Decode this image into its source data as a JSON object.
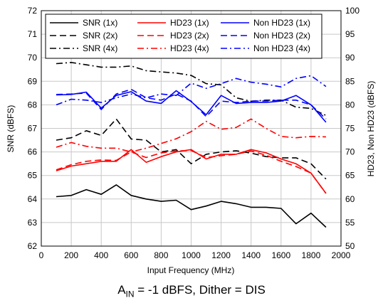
{
  "chart_data": {
    "type": "line",
    "title": "",
    "xlabel": "Input Frequency (MHz)",
    "ylabel_left": "SNR (dBFS)",
    "ylabel_right": "HD23, Non HD23 (dBFS)",
    "xlim": [
      0,
      2000
    ],
    "ylim_left": [
      62,
      72
    ],
    "ylim_right": [
      50,
      100
    ],
    "x_ticks": [
      0,
      200,
      400,
      600,
      800,
      1000,
      1200,
      1400,
      1600,
      1800,
      2000
    ],
    "y_left_ticks": [
      62,
      63,
      64,
      65,
      66,
      67,
      68,
      69,
      70,
      71,
      72
    ],
    "y_right_ticks": [
      50,
      55,
      60,
      65,
      70,
      75,
      80,
      85,
      90,
      95,
      100
    ],
    "grid": true,
    "legend_position": "top",
    "series": [
      {
        "name": "SNR (1x)",
        "axis": "left",
        "color": "#000000",
        "dash": "solid",
        "x": [
          100,
          200,
          300,
          400,
          500,
          600,
          700,
          800,
          900,
          1000,
          1100,
          1200,
          1300,
          1400,
          1500,
          1600,
          1700,
          1800,
          1900
        ],
        "y": [
          64.1,
          64.15,
          64.4,
          64.2,
          64.6,
          64.15,
          64.0,
          63.9,
          63.95,
          63.55,
          63.7,
          63.9,
          63.8,
          63.65,
          63.65,
          63.6,
          62.95,
          63.4,
          62.8
        ]
      },
      {
        "name": "SNR (2x)",
        "axis": "left",
        "color": "#000000",
        "dash": "dash",
        "x": [
          100,
          200,
          300,
          400,
          500,
          600,
          700,
          800,
          900,
          1000,
          1100,
          1200,
          1300,
          1400,
          1500,
          1600,
          1700,
          1800,
          1900
        ],
        "y": [
          66.5,
          66.6,
          66.9,
          66.7,
          67.4,
          66.55,
          66.5,
          66.0,
          66.1,
          65.5,
          65.9,
          66.0,
          66.05,
          65.95,
          65.8,
          65.75,
          65.75,
          65.5,
          64.85
        ]
      },
      {
        "name": "SNR (4x)",
        "axis": "left",
        "color": "#000000",
        "dash": "dashdot",
        "x": [
          100,
          200,
          300,
          400,
          500,
          600,
          700,
          800,
          900,
          1000,
          1100,
          1200,
          1300,
          1400,
          1500,
          1600,
          1700,
          1800,
          1900
        ],
        "y": [
          69.75,
          69.8,
          69.7,
          69.6,
          69.6,
          69.65,
          69.45,
          69.4,
          69.35,
          69.25,
          68.9,
          68.85,
          68.3,
          68.15,
          68.2,
          68.2,
          67.9,
          67.85,
          67.55
        ]
      },
      {
        "name": "HD23 (1x)",
        "axis": "right",
        "color": "#ff0000",
        "dash": "solid",
        "x": [
          100,
          200,
          300,
          400,
          500,
          600,
          700,
          800,
          900,
          1000,
          1100,
          1200,
          1300,
          1400,
          1500,
          1600,
          1700,
          1800,
          1900
        ],
        "y": [
          66.0,
          67.0,
          67.5,
          68.0,
          68.0,
          70.5,
          67.8,
          69.0,
          70.0,
          70.5,
          68.5,
          69.5,
          69.5,
          70.5,
          69.8,
          68.5,
          67.5,
          65.5,
          61.2
        ]
      },
      {
        "name": "HD23 (2x)",
        "axis": "right",
        "color": "#ff0000",
        "dash": "dash",
        "x": [
          100,
          200,
          300,
          400,
          500,
          600,
          700,
          800,
          900,
          1000,
          1100,
          1200,
          1300,
          1400,
          1500,
          1600,
          1700,
          1800,
          1900
        ],
        "y": [
          66.2,
          67.3,
          68.0,
          68.3,
          68.2,
          70.0,
          68.8,
          69.8,
          70.2,
          70.3,
          68.8,
          69.2,
          69.5,
          70.2,
          69.3,
          68.0,
          66.9,
          65.5,
          61.2
        ]
      },
      {
        "name": "HD23 (4x)",
        "axis": "right",
        "color": "#ff0000",
        "dash": "dashdot",
        "x": [
          100,
          200,
          300,
          400,
          500,
          600,
          700,
          800,
          900,
          1000,
          1100,
          1200,
          1300,
          1400,
          1500,
          1600,
          1700,
          1800,
          1900
        ],
        "y": [
          71.0,
          72.0,
          71.2,
          70.8,
          70.8,
          70.0,
          70.8,
          71.8,
          72.8,
          74.3,
          76.5,
          74.8,
          75.2,
          77.0,
          75.0,
          73.3,
          73.0,
          73.3,
          73.2
        ]
      },
      {
        "name": "Non HD23 (1x)",
        "axis": "right",
        "color": "#0000ff",
        "dash": "solid",
        "x": [
          100,
          200,
          300,
          400,
          500,
          600,
          700,
          800,
          900,
          1000,
          1100,
          1200,
          1300,
          1400,
          1500,
          1600,
          1700,
          1800,
          1900
        ],
        "y": [
          82.1,
          82.2,
          82.7,
          79.3,
          82.0,
          82.8,
          80.8,
          80.3,
          83.0,
          80.7,
          77.9,
          82.0,
          80.3,
          80.5,
          80.5,
          80.8,
          82.0,
          80.0,
          76.3
        ]
      },
      {
        "name": "Non HD23 (2x)",
        "axis": "right",
        "color": "#0000ff",
        "dash": "dash",
        "x": [
          100,
          200,
          300,
          400,
          500,
          600,
          700,
          800,
          900,
          1000,
          1100,
          1200,
          1300,
          1400,
          1500,
          1600,
          1700,
          1800,
          1900
        ],
        "y": [
          82.2,
          82.3,
          82.5,
          79.0,
          82.3,
          83.3,
          81.5,
          81.0,
          82.3,
          80.8,
          77.5,
          80.8,
          80.5,
          80.8,
          80.8,
          81.0,
          81.0,
          80.0,
          77.0
        ]
      },
      {
        "name": "Non HD23 (4x)",
        "axis": "right",
        "color": "#0000ff",
        "dash": "dashdot",
        "x": [
          100,
          200,
          300,
          400,
          500,
          600,
          700,
          800,
          900,
          1000,
          1100,
          1200,
          1300,
          1400,
          1500,
          1600,
          1700,
          1800,
          1900
        ],
        "y": [
          80.0,
          81.2,
          81.0,
          80.5,
          81.5,
          82.3,
          81.5,
          82.3,
          82.0,
          84.6,
          83.5,
          84.5,
          85.6,
          84.8,
          84.4,
          83.8,
          85.6,
          86.2,
          83.9
        ]
      }
    ]
  },
  "caption": {
    "a_main": "A",
    "a_sub": "IN",
    "rest": " = -1 dBFS, Dither = DIS"
  }
}
